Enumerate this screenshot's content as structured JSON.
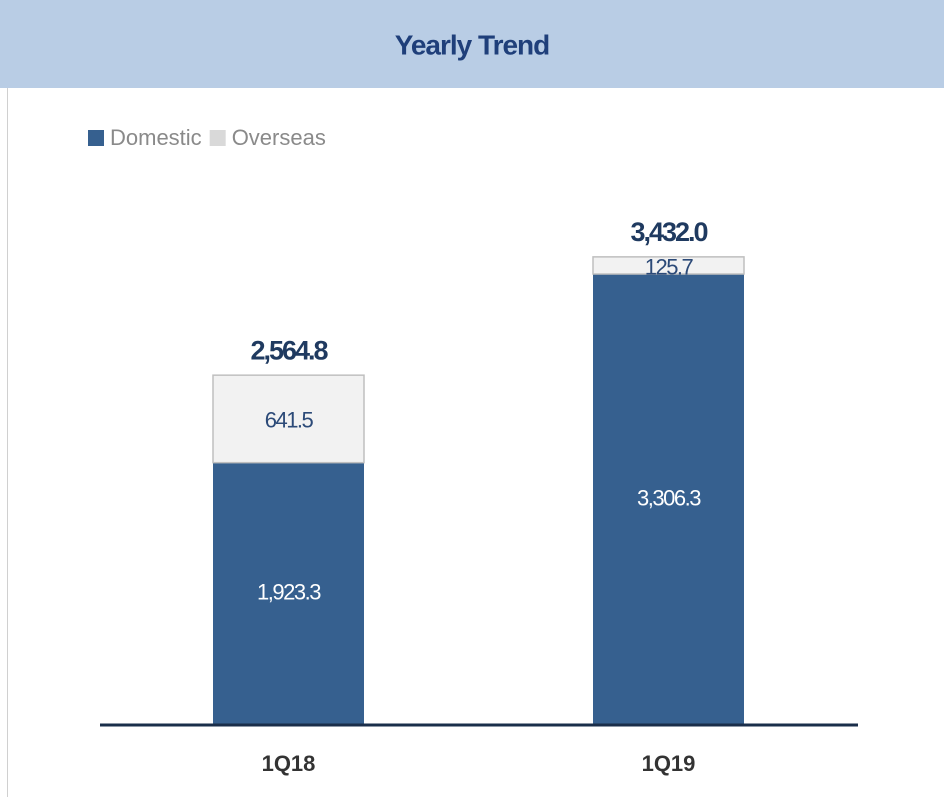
{
  "chart_data": {
    "type": "stacked_bar",
    "title": "Yearly Trend",
    "categories": [
      "1Q18",
      "1Q19"
    ],
    "series": [
      {
        "name": "Domestic",
        "color": "#36608f",
        "values": [
          1923.3,
          3306.3
        ],
        "value_labels": [
          "1,923.3",
          "3,306.3"
        ]
      },
      {
        "name": "Overseas",
        "color": "#f2f2f2",
        "values": [
          641.5,
          125.7
        ]
      }
    ],
    "totals": [
      2564.8,
      3432.0
    ],
    "total_labels": [
      "2,564.8",
      "3,432.0"
    ],
    "ylim": [
      0,
      4000
    ],
    "legend": "top-left"
  }
}
